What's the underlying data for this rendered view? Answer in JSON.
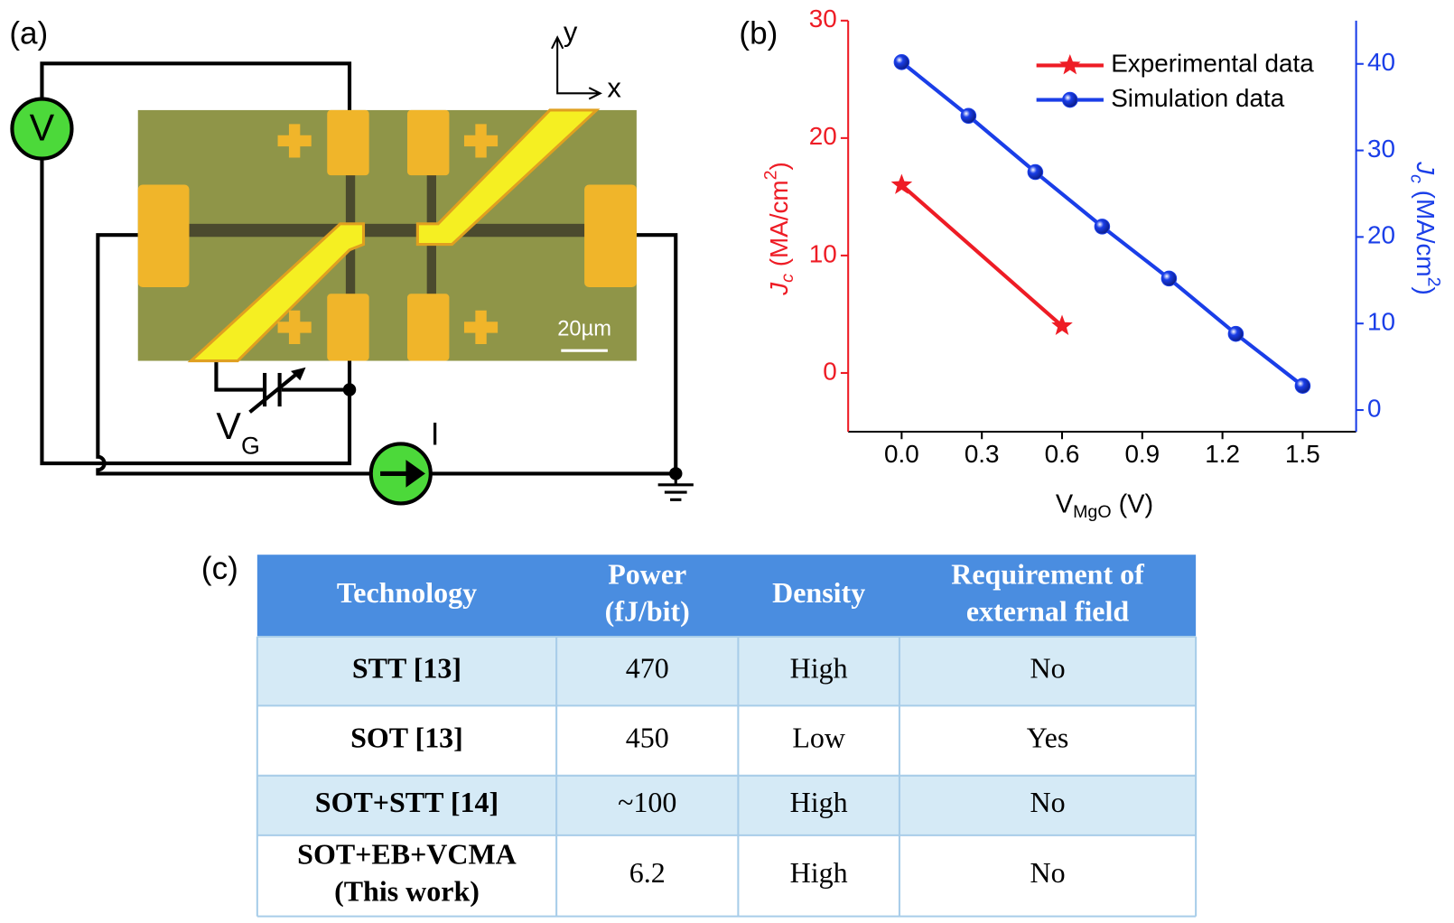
{
  "panels": {
    "a": "(a)",
    "b": "(b)",
    "c": "(c)"
  },
  "circuit": {
    "voltmeter": "V",
    "gate": [
      "V",
      "G"
    ],
    "current": "I",
    "axis_y": "y",
    "axis_x": "x",
    "scale_bar": "20µm"
  },
  "chart_data": {
    "type": "line",
    "x_label": [
      "V",
      "MgO",
      " (V)"
    ],
    "y_label": [
      "J",
      "c",
      " (MA/cm",
      "2",
      ")"
    ],
    "y2_label": [
      "J",
      "c",
      " (MA/cm",
      "2",
      ")"
    ],
    "xlim": [
      -0.2,
      1.7
    ],
    "xticks": [
      {
        "value": 0,
        "label": "0.0"
      },
      0.3,
      0.6,
      0.9,
      1.2,
      1.5
    ],
    "ylim": [
      -5,
      30
    ],
    "yticks": [
      0,
      10,
      20,
      30
    ],
    "y2lim": [
      -2.5,
      45
    ],
    "y2ticks": [
      0,
      10,
      20,
      30,
      40
    ],
    "y_color": "#ee1c25",
    "y2_color": "#1a3ee8",
    "legend": "top-right",
    "series": [
      {
        "name": "Experimental data",
        "color": "#ee1c25",
        "marker": "star",
        "axis": "y",
        "x": [
          0,
          0.6
        ],
        "values": [
          16,
          4
        ]
      },
      {
        "name": "Simulation data",
        "color": "#1a3ee8",
        "marker": "circle",
        "axis": "y2",
        "x": [
          0,
          0.25,
          0.5,
          0.75,
          1.0,
          1.25,
          1.5
        ],
        "values": [
          40.2,
          34,
          27.5,
          21.2,
          15.2,
          8.8,
          2.8
        ]
      }
    ]
  },
  "table": {
    "header": [
      [
        "Technology"
      ],
      [
        "Power",
        "(fJ/bit)"
      ],
      [
        "Density"
      ],
      [
        "Requirement of",
        "external field"
      ]
    ],
    "rows": [
      [
        [
          "STT [13]"
        ],
        [
          "470"
        ],
        [
          "High"
        ],
        [
          "No"
        ]
      ],
      [
        [
          "SOT [13]"
        ],
        [
          "450"
        ],
        [
          "Low"
        ],
        [
          "Yes"
        ]
      ],
      [
        [
          "SOT+STT [14]"
        ],
        [
          "~100"
        ],
        [
          "High"
        ],
        [
          "No"
        ]
      ],
      [
        [
          "SOT+EB+VCMA",
          "(This work)"
        ],
        [
          "6.2"
        ],
        [
          "High"
        ],
        [
          "No"
        ]
      ]
    ]
  }
}
